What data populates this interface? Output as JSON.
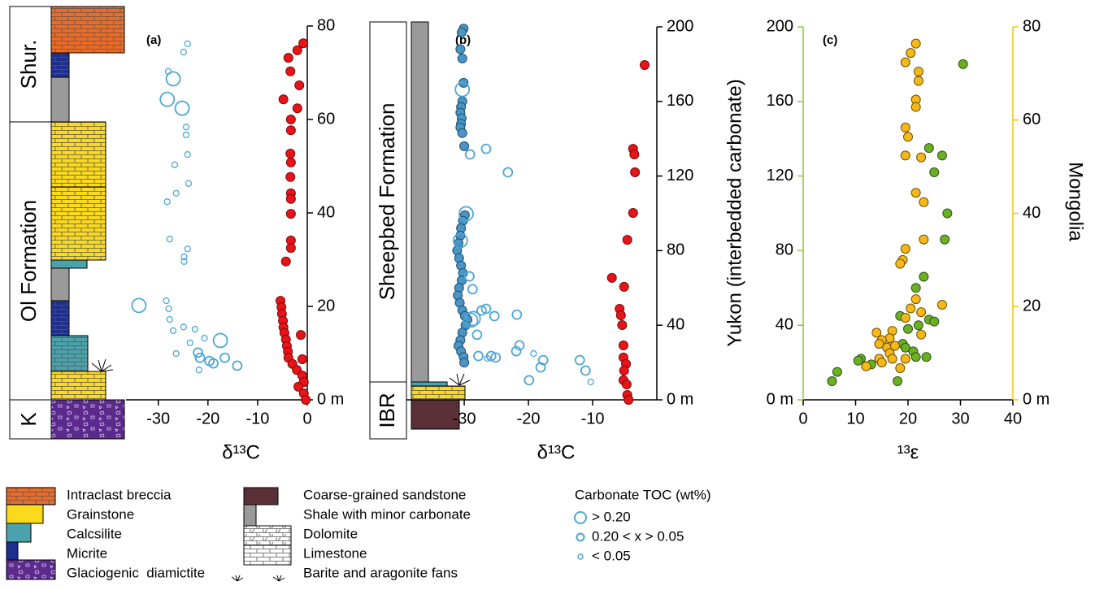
{
  "chart_data": [
    {
      "type": "scatter",
      "title": "(a)",
      "xlabel": "δ¹³C",
      "units": [
        "Shur.",
        "Ol Formation",
        "K"
      ],
      "xlim": [
        -36.5,
        0
      ],
      "xticks": [
        -30,
        -20,
        -10,
        0
      ],
      "ylim": [
        0,
        80
      ],
      "yticks": [
        {
          "value": 0,
          "label": "0 m"
        },
        20,
        40,
        60,
        80
      ],
      "series": [
        {
          "name": "> 0.20",
          "marker": "large",
          "fill": false,
          "color": "#4ea6d6",
          "x": [
            -27,
            -28.2,
            -25.2,
            -33.9,
            -17.5
          ],
          "values": [
            68.7,
            64.3,
            62.4,
            20.2,
            12.7
          ]
        },
        {
          "name": "0.20 < x > 0.05",
          "marker": "medium",
          "fill": false,
          "color": "#4ea6d6",
          "x": [
            -22,
            -21.6,
            -19.7,
            -16.6,
            -18.9,
            -14.1
          ],
          "values": [
            10.1,
            9.0,
            8.3,
            9.0,
            7.8,
            7.3
          ]
        },
        {
          "name": "< 0.05",
          "marker": "small",
          "fill": false,
          "color": "#4ea6d6",
          "x": [
            -24.1,
            -24.9,
            -28,
            -24.4,
            -24.4,
            -24.1,
            -26.7,
            -23.9,
            -26.4,
            -28.2,
            -27.7,
            -24.1,
            -24.8,
            -24.8,
            -28.4,
            -27.9,
            -27.7,
            -27,
            -24.9,
            -22.6,
            -20.7,
            -23.6,
            -26.4,
            -21.8
          ],
          "values": [
            76.2,
            74.4,
            70.3,
            58.4,
            56.7,
            52.5,
            50.3,
            46.3,
            44.2,
            42.4,
            34.4,
            32.3,
            30.6,
            29.6,
            21.2,
            19.5,
            17.2,
            14.8,
            15.6,
            15.1,
            13.2,
            12.2,
            9.9,
            6.4
          ]
        },
        {
          "marker": "medium",
          "fill": true,
          "color": "#e8141a",
          "edge": "#7a0a0a",
          "x": [
            -0.8,
            -2,
            -3.8,
            -3.4,
            -1.6,
            -4.8,
            -2,
            -3.3,
            -3.3,
            -3.4,
            -3.3,
            -3.4,
            -3.3,
            -3.3,
            -3.3,
            -3.3,
            -3.3,
            -4.3,
            -5.4,
            -5.2,
            -5.1,
            -4.9,
            -4.8,
            -4.6,
            -1.3,
            -4.3,
            -4.1,
            -3.9,
            -3.8,
            -1,
            -3,
            -2.1,
            -1,
            -0.7,
            -1.8,
            -0.7,
            -0.3
          ],
          "values": [
            76.3,
            74.8,
            73.2,
            70.3,
            67.3,
            64.3,
            62.4,
            60,
            57.7,
            52.7,
            50.8,
            47.7,
            44.2,
            43,
            39.8,
            34.1,
            32.5,
            29.6,
            21.2,
            19.8,
            18.4,
            16.9,
            15.5,
            14.3,
            13.9,
            12.9,
            11.5,
            10.3,
            9,
            8.7,
            7.7,
            6.4,
            5.2,
            3.8,
            2.8,
            1.4,
            0
          ]
        }
      ]
    },
    {
      "type": "scatter",
      "title": "(b)",
      "xlabel": "δ¹³C",
      "units": [
        "Sheepbed Formation",
        "IBR"
      ],
      "xlim": [
        -39,
        0
      ],
      "xticks": [
        -30,
        -20,
        -10
      ],
      "ylim": [
        0,
        200
      ],
      "yticks": [
        {
          "value": 0,
          "label": "0 m"
        },
        40,
        80,
        120,
        160,
        200
      ],
      "series": [
        {
          "marker": "medium",
          "fill": true,
          "color": "#4a95c4",
          "edge": "#1f4f73",
          "x": [
            -30.1,
            -30.4,
            -30.6,
            -30.3,
            -30.1,
            -30.3,
            -30.5,
            -30.6,
            -30.4,
            -30.5,
            -30.6,
            -30.3,
            -30,
            -29.9,
            -30.2,
            -30.5,
            -30.6,
            -30.9,
            -31.1,
            -30.8,
            -30.5,
            -30.2,
            -30.4,
            -30.8,
            -31,
            -30.7,
            -30.3,
            -29.9,
            -29.5,
            -29.8,
            -30.3,
            -30.6,
            -30.9,
            -30.5,
            -30.1,
            -30
          ],
          "values": [
            199,
            197,
            188,
            183,
            170,
            160,
            157,
            154,
            151,
            148,
            146,
            143,
            136,
            99,
            96,
            92,
            88,
            84,
            80,
            76,
            72,
            68,
            64,
            60,
            56,
            52,
            48,
            45,
            43,
            40,
            36,
            32,
            29,
            26,
            23,
            20
          ]
        },
        {
          "marker": "large",
          "fill": false,
          "color": "#4ea6d6",
          "x": [
            -30.3,
            -29.7,
            -30.6,
            -29,
            -28.6
          ],
          "values": [
            166.4,
            99.8,
            85.4,
            42.7,
            43.6
          ]
        },
        {
          "marker": "medium",
          "fill": false,
          "color": "#4ea6d6",
          "x": [
            -26.6,
            -29.1,
            -23.2,
            -29.2,
            -28.7,
            -26.6,
            -27.3,
            -25.3,
            -21.8,
            -28,
            -21.4,
            -21.9,
            -27.8,
            -25.8,
            -25.1,
            -17.7,
            -12,
            -18.1,
            -11.1,
            -19.9
          ],
          "values": [
            134.6,
            131.6,
            122,
            66.2,
            59.3,
            48.8,
            47.9,
            44.9,
            45.7,
            34.9,
            29.2,
            26.1,
            23.5,
            23.5,
            22.7,
            21.3,
            21.3,
            17.4,
            15.7,
            10.5
          ]
        },
        {
          "marker": "small",
          "fill": false,
          "color": "#4ea6d6",
          "x": [
            -19.2,
            -10.3,
            -26.4
          ],
          "values": [
            24.8,
            9.6,
            22.2
          ]
        },
        {
          "marker": "medium",
          "fill": true,
          "color": "#e8141a",
          "edge": "#7a0a0a",
          "x": [
            -1.9,
            -3.7,
            -3.5,
            -3.4,
            -3.7,
            -4.6,
            -7,
            -5.1,
            -5.8,
            -5.6,
            -5.4,
            -5.2,
            -5.2,
            -4.8,
            -5.1,
            -5.2,
            -4.7,
            -4.6,
            -4.4
          ],
          "values": [
            179.5,
            134.6,
            131.6,
            122,
            100.2,
            85.8,
            65.4,
            60.6,
            48.8,
            45.3,
            40.1,
            29.2,
            22.7,
            19.2,
            15.7,
            10.5,
            8.3,
            2.6,
            0
          ]
        }
      ]
    },
    {
      "type": "scatter",
      "title": "(c)",
      "xlabel": "¹³ε",
      "ylabel": "Yukon (interbedded carbonate)",
      "y2label": "Mongolia",
      "y_axis_color": "#8dc63f",
      "y2_axis_color": "#f2c31b",
      "xlim": [
        0,
        40
      ],
      "xticks": [
        0,
        10,
        20,
        30,
        40
      ],
      "ylim": [
        0,
        200
      ],
      "yticks": [
        {
          "value": 0,
          "label": "0 m"
        },
        40,
        80,
        120,
        160,
        200
      ],
      "y2lim": [
        0,
        80
      ],
      "y2ticks": [
        {
          "value": 0,
          "label": "0 m"
        },
        20,
        40,
        60,
        80
      ],
      "series": [
        {
          "marker": "medium",
          "fill": true,
          "color": "#6ab023",
          "edge": "#2f5410",
          "x": [
            30.5,
            24,
            26.5,
            25,
            27.5,
            27,
            23,
            21.5,
            18.5,
            24,
            25,
            22,
            20,
            19,
            21,
            23.5,
            21.5,
            19.5,
            11,
            12,
            13,
            6.5,
            5.5,
            18,
            10.5
          ],
          "values": [
            180,
            135,
            131,
            122,
            100,
            86,
            66,
            60,
            45,
            43,
            42,
            40,
            38,
            30,
            26,
            23,
            23,
            28,
            22,
            18,
            19,
            15,
            10,
            10,
            21
          ]
        },
        {
          "axis": "y2",
          "marker": "medium",
          "fill": true,
          "color": "#f6b818",
          "edge": "#6b4f00",
          "x": [
            21.5,
            20.5,
            19.5,
            22,
            22,
            21.5,
            21.5,
            19.5,
            20,
            19.5,
            22.5,
            21.5,
            23,
            23,
            19.5,
            19,
            18.5,
            21.5,
            20.5,
            26.5,
            22.5,
            19.5,
            22.5,
            17,
            14,
            16.5,
            15,
            14.5,
            16,
            17.5,
            16.5,
            14.5,
            15,
            17,
            19.5,
            12,
            18.5
          ],
          "values": [
            76.4,
            74.4,
            72.4,
            70.4,
            68.4,
            64.4,
            62.8,
            58.4,
            56.4,
            52.4,
            52,
            44.4,
            42.4,
            34.4,
            32.4,
            30,
            29.2,
            21.6,
            19.6,
            20.4,
            18.8,
            17.6,
            14,
            14.8,
            14.4,
            13.2,
            12.8,
            12,
            11.2,
            11.6,
            10,
            8.8,
            8,
            8.8,
            8.8,
            7.2,
            6.8
          ]
        }
      ]
    }
  ],
  "legend": {
    "lithology": [
      "Intraclast breccia",
      "Grainstone",
      "Calcsilite",
      "Micrite",
      "Glaciogenic  diamictite",
      "Coarse-grained sandstone",
      "Shale with minor carbonate",
      "Dolomite",
      "Limestone",
      "Barite and aragonite fans"
    ],
    "toc_title": "Carbonate TOC (wt%)"
  }
}
